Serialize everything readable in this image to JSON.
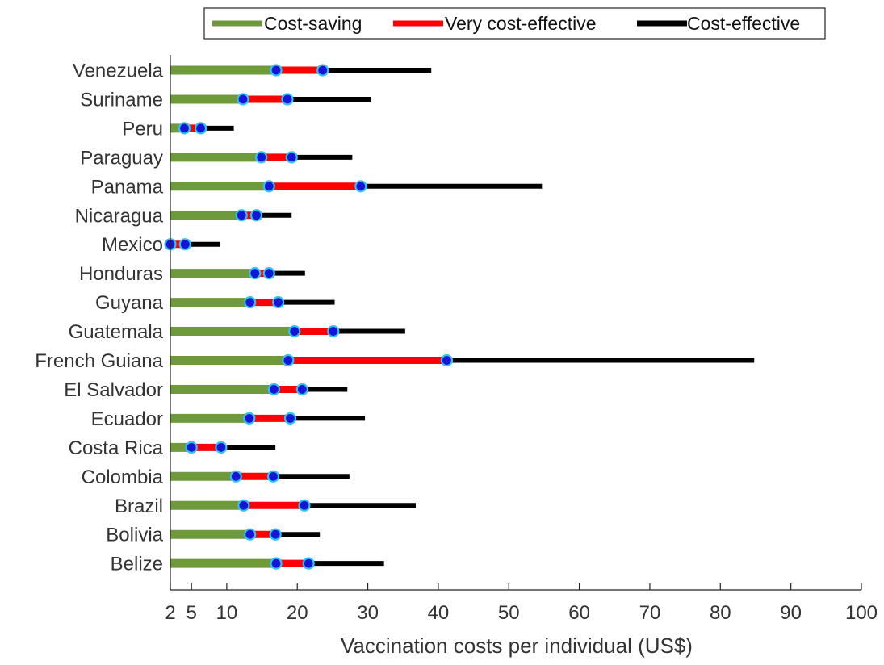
{
  "chart_data": {
    "type": "bar",
    "orientation": "horizontal-range",
    "xlabel": "Vaccination costs per individual (US$)",
    "xlim": [
      2,
      100
    ],
    "xticks": [
      2,
      5,
      10,
      20,
      30,
      40,
      50,
      60,
      70,
      80,
      90,
      100
    ],
    "legend_position": "top",
    "grid": false,
    "categories": [
      "Venezuela",
      "Suriname",
      "Peru",
      "Paraguay",
      "Panama",
      "Nicaragua",
      "Mexico",
      "Honduras",
      "Guyana",
      "Guatemala",
      "French Guiana",
      "El Salvador",
      "Ecuador",
      "Costa Rica",
      "Colombia",
      "Brazil",
      "Bolivia",
      "Belize"
    ],
    "series": [
      {
        "name": "Cost-saving",
        "color": "#6f9a3b",
        "values": [
          17.0,
          12.3,
          4.0,
          14.9,
          16.0,
          12.1,
          2.0,
          14.0,
          13.3,
          19.6,
          18.7,
          16.7,
          13.2,
          5.0,
          11.3,
          12.4,
          13.3,
          17.0
        ]
      },
      {
        "name": "Very cost-effective",
        "color": "#ff0000",
        "values": [
          23.6,
          18.6,
          6.3,
          19.2,
          29.0,
          14.2,
          4.1,
          16.0,
          17.3,
          25.1,
          41.2,
          20.7,
          19.0,
          9.2,
          16.6,
          21.0,
          16.9,
          21.6
        ]
      },
      {
        "name": "Cost-effective",
        "color": "#000000",
        "values": [
          39.0,
          30.5,
          11.0,
          27.8,
          54.7,
          19.2,
          9.0,
          21.1,
          25.3,
          35.3,
          84.8,
          27.1,
          29.6,
          16.9,
          27.4,
          36.8,
          23.2,
          32.3
        ]
      }
    ]
  }
}
